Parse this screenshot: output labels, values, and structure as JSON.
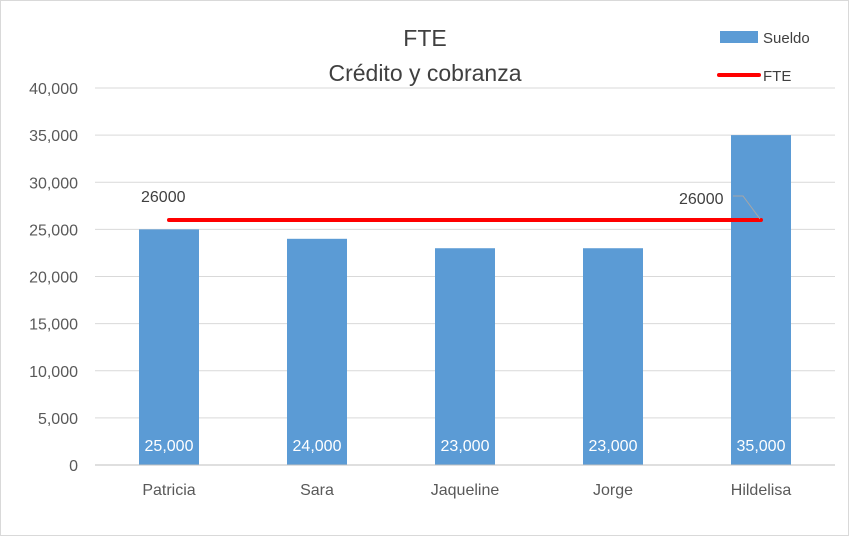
{
  "chart_data": {
    "type": "bar",
    "title": "FTE",
    "subtitle": "Crédito y cobranza",
    "categories": [
      "Patricia",
      "Sara",
      "Jaqueline",
      "Jorge",
      "Hildelisa"
    ],
    "series": [
      {
        "name": "Sueldo",
        "type": "bar",
        "color": "#5b9bd5",
        "values": [
          25000,
          24000,
          23000,
          23000,
          35000
        ],
        "data_labels": [
          "25,000",
          "24,000",
          "23,000",
          "23,000",
          "35,000"
        ]
      },
      {
        "name": "FTE",
        "type": "line",
        "color": "#ff0000",
        "values": [
          26000,
          26000,
          26000,
          26000,
          26000
        ],
        "data_labels": [
          "26000",
          "26000"
        ]
      }
    ],
    "ylim": [
      0,
      40000
    ],
    "yticks": [
      "0",
      "5,000",
      "10,000",
      "15,000",
      "20,000",
      "25,000",
      "30,000",
      "35,000",
      "40,000"
    ],
    "grid": true,
    "legend": "top-right"
  }
}
